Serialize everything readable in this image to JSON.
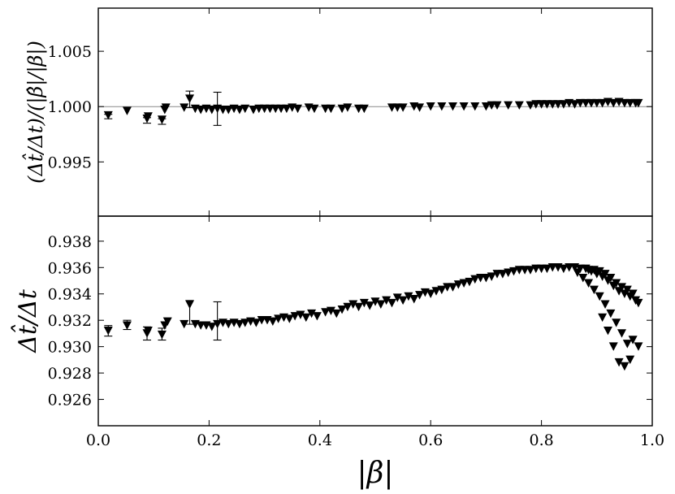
{
  "chart_data": [
    {
      "type": "scatter",
      "panel": "top",
      "title": "",
      "ylabel": "(Δt̂/Δt)/(|β̂|/|β|)",
      "xlabel": "",
      "xlim": [
        0.0,
        1.0
      ],
      "ylim": [
        0.9901,
        1.0089
      ],
      "yticks": [
        "0.995",
        "1.000",
        "1.005"
      ],
      "ytick_values": [
        0.995,
        1.0,
        1.005
      ],
      "xticks_labeled": false,
      "reference_line": 1.0,
      "marker": "filled-down-triangle",
      "grid": false,
      "series": [
        {
          "x": [
            0.018,
            0.052,
            0.088,
            0.09,
            0.115,
            0.12,
            0.122,
            0.155,
            0.165,
            0.175,
            0.185,
            0.195,
            0.205,
            0.215,
            0.225,
            0.235,
            0.245,
            0.255,
            0.265,
            0.28,
            0.29,
            0.3,
            0.31,
            0.32,
            0.33,
            0.34,
            0.35,
            0.36,
            0.38,
            0.39,
            0.41,
            0.42,
            0.44,
            0.45,
            0.47,
            0.48,
            0.53,
            0.54,
            0.55,
            0.57,
            0.58,
            0.6,
            0.62,
            0.64,
            0.66,
            0.68,
            0.7,
            0.71,
            0.72,
            0.74,
            0.76,
            0.78,
            0.79,
            0.8,
            0.81,
            0.82,
            0.83,
            0.84,
            0.85,
            0.86,
            0.87,
            0.88,
            0.89,
            0.9,
            0.91,
            0.92,
            0.93,
            0.94,
            0.95,
            0.96,
            0.97,
            0.975
          ],
          "y": [
            0.9992,
            0.9996,
            0.9989,
            0.9991,
            0.9988,
            0.9997,
            0.9999,
            0.9999,
            1.0007,
            0.9998,
            0.9997,
            0.9998,
            0.9997,
            0.9998,
            0.9997,
            0.9997,
            0.9998,
            0.9997,
            0.9998,
            0.9997,
            0.9998,
            0.9998,
            0.9998,
            0.9998,
            0.9998,
            0.9998,
            0.9999,
            0.9998,
            0.9999,
            0.9998,
            0.9998,
            0.9998,
            0.9998,
            0.9999,
            0.9998,
            0.9998,
            0.9999,
            0.9999,
            0.9999,
            1.0,
            0.9999,
            1.0,
            1.0,
            1.0,
            1.0,
            1.0,
            1.0,
            1.0001,
            1.0001,
            1.0001,
            1.0001,
            1.0001,
            1.0002,
            1.0002,
            1.0002,
            1.0002,
            1.0002,
            1.0002,
            1.0003,
            1.0002,
            1.0003,
            1.0003,
            1.0003,
            1.0003,
            1.0003,
            1.0004,
            1.0003,
            1.0004,
            1.0003,
            1.0003,
            1.0003,
            1.0003
          ],
          "errors": [
            {
              "x": 0.018,
              "low": 0.9989,
              "high": 0.9993
            },
            {
              "x": 0.088,
              "low": 0.9985,
              "high": 0.999
            },
            {
              "x": 0.115,
              "low": 0.9984,
              "high": 0.9989
            },
            {
              "x": 0.165,
              "low": 0.9999,
              "high": 1.0014
            },
            {
              "x": 0.215,
              "low": 0.9983,
              "high": 1.0013
            }
          ]
        }
      ]
    },
    {
      "type": "scatter",
      "panel": "bottom",
      "title": "",
      "ylabel": "Δt̂/Δt",
      "xlabel": "|β|",
      "xlim": [
        0.0,
        1.0
      ],
      "ylim": [
        0.924,
        0.9399
      ],
      "yticks": [
        "0.926",
        "0.928",
        "0.930",
        "0.932",
        "0.934",
        "0.936",
        "0.938"
      ],
      "ytick_values": [
        0.926,
        0.928,
        0.93,
        0.932,
        0.934,
        0.936,
        0.938
      ],
      "xticks": [
        "0.0",
        "0.2",
        "0.4",
        "0.6",
        "0.8",
        "1.0"
      ],
      "xtick_values": [
        0.0,
        0.2,
        0.4,
        0.6,
        0.8,
        1.0
      ],
      "marker": "filled-down-triangle",
      "grid": false,
      "series": [
        {
          "x": [
            0.018,
            0.052,
            0.088,
            0.09,
            0.115,
            0.12,
            0.125,
            0.155,
            0.165,
            0.175,
            0.185,
            0.195,
            0.205,
            0.215,
            0.225,
            0.235,
            0.245,
            0.255,
            0.265,
            0.275,
            0.285,
            0.295,
            0.305,
            0.315,
            0.325,
            0.335,
            0.345,
            0.355,
            0.365,
            0.375,
            0.385,
            0.395,
            0.41,
            0.42,
            0.43,
            0.44,
            0.45,
            0.46,
            0.47,
            0.48,
            0.49,
            0.5,
            0.51,
            0.52,
            0.53,
            0.54,
            0.55,
            0.56,
            0.57,
            0.58,
            0.59,
            0.6,
            0.61,
            0.62,
            0.63,
            0.64,
            0.65,
            0.66,
            0.67,
            0.68,
            0.69,
            0.7,
            0.71,
            0.72,
            0.73,
            0.74,
            0.75,
            0.76,
            0.77,
            0.78,
            0.79,
            0.8,
            0.81,
            0.82,
            0.83,
            0.84,
            0.85,
            0.86,
            0.87,
            0.88,
            0.885,
            0.89,
            0.895,
            0.9,
            0.905,
            0.91,
            0.915,
            0.92,
            0.925,
            0.93,
            0.935,
            0.94,
            0.945,
            0.95,
            0.955,
            0.96,
            0.965,
            0.97,
            0.975,
            0.865,
            0.875,
            0.885,
            0.895,
            0.905,
            0.915,
            0.925,
            0.935,
            0.945,
            0.955,
            0.965,
            0.975,
            0.91,
            0.92,
            0.93,
            0.94,
            0.95,
            0.96
          ],
          "y": [
            0.9312,
            0.9316,
            0.931,
            0.9312,
            0.9309,
            0.9316,
            0.9319,
            0.9317,
            0.9332,
            0.9317,
            0.9316,
            0.9316,
            0.9315,
            0.9317,
            0.9318,
            0.9317,
            0.9318,
            0.9317,
            0.9318,
            0.9319,
            0.9318,
            0.932,
            0.932,
            0.9319,
            0.9321,
            0.9322,
            0.9321,
            0.9323,
            0.9324,
            0.9322,
            0.9325,
            0.9323,
            0.9326,
            0.9327,
            0.9325,
            0.9328,
            0.933,
            0.9332,
            0.933,
            0.9333,
            0.9331,
            0.9334,
            0.9332,
            0.9335,
            0.9333,
            0.9337,
            0.9335,
            0.9338,
            0.9336,
            0.9339,
            0.9341,
            0.934,
            0.9342,
            0.9343,
            0.9345,
            0.9345,
            0.9347,
            0.9348,
            0.9349,
            0.9351,
            0.9352,
            0.9352,
            0.9353,
            0.9355,
            0.9355,
            0.9356,
            0.9357,
            0.9358,
            0.9358,
            0.9358,
            0.9359,
            0.9359,
            0.9359,
            0.936,
            0.936,
            0.9359,
            0.936,
            0.936,
            0.9359,
            0.9359,
            0.9358,
            0.9357,
            0.9358,
            0.9355,
            0.9357,
            0.9353,
            0.9355,
            0.935,
            0.9352,
            0.9346,
            0.9348,
            0.9342,
            0.9345,
            0.934,
            0.9343,
            0.9338,
            0.934,
            0.9335,
            0.9333,
            0.9356,
            0.9352,
            0.9348,
            0.9343,
            0.9338,
            0.9332,
            0.9325,
            0.9318,
            0.931,
            0.9302,
            0.9305,
            0.93,
            0.9322,
            0.9312,
            0.93,
            0.9288,
            0.9285,
            0.929
          ],
          "errors": [
            {
              "x": 0.018,
              "low": 0.9308,
              "high": 0.9316
            },
            {
              "x": 0.052,
              "low": 0.9313,
              "high": 0.932
            },
            {
              "x": 0.088,
              "low": 0.9305,
              "high": 0.9315
            },
            {
              "x": 0.115,
              "low": 0.9305,
              "high": 0.9314
            },
            {
              "x": 0.165,
              "low": 0.9317,
              "high": 0.9335
            },
            {
              "x": 0.215,
              "low": 0.9305,
              "high": 0.9334
            }
          ]
        }
      ]
    }
  ]
}
